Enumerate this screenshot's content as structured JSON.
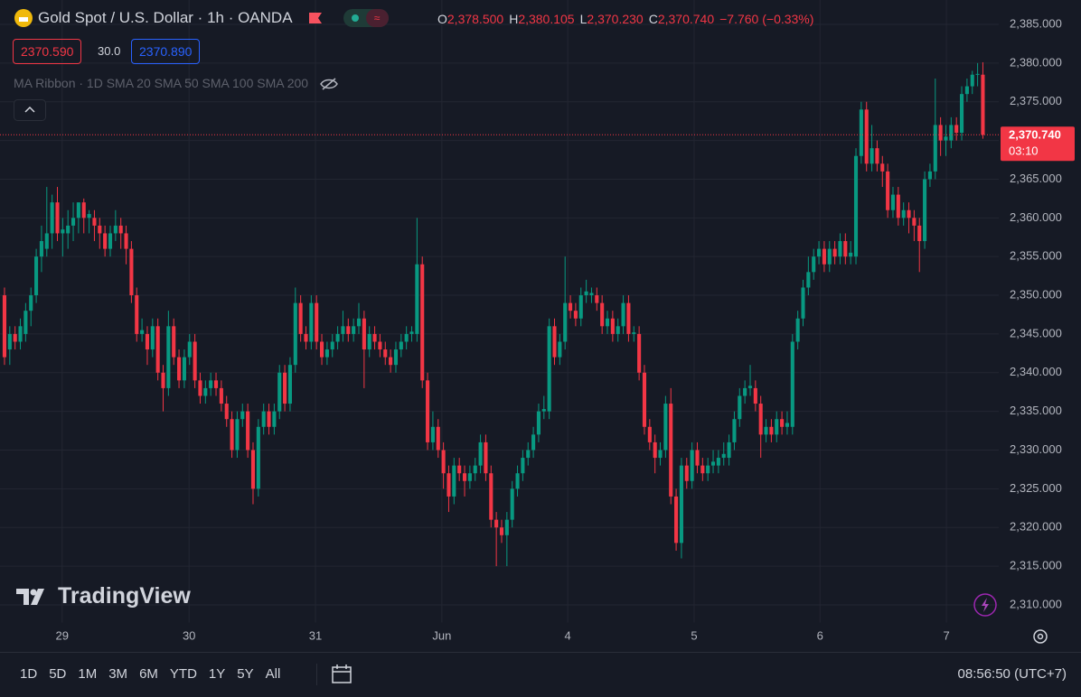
{
  "header": {
    "symbol": "Gold Spot / U.S. Dollar · 1h · OANDA",
    "ohlc": [
      {
        "key": "O",
        "value": "2,378.500"
      },
      {
        "key": "H",
        "value": "2,380.105"
      },
      {
        "key": "L",
        "value": "2,370.230"
      },
      {
        "key": "C",
        "value": "2,370.740"
      }
    ],
    "change": "−7.760 (−0.33%)"
  },
  "quote": {
    "bid": "2370.590",
    "spread": "30.0",
    "ask": "2370.890"
  },
  "indicator": "MA Ribbon · 1D SMA 20 SMA 50 SMA 100 SMA 200",
  "watermark": "TradingView",
  "ranges": [
    "1D",
    "5D",
    "1M",
    "3M",
    "6M",
    "YTD",
    "1Y",
    "5Y",
    "All"
  ],
  "clock": "08:56:50 (UTC+7)",
  "chart_data": {
    "type": "candlestick",
    "up_color": "#089981",
    "down_color": "#f23645",
    "grid": true,
    "last_price": {
      "value": 2370.74,
      "label": "2,370.740"
    },
    "countdown": "03:10",
    "xlim": [
      -0.85,
      188
    ],
    "xticks": [
      {
        "value": 10.9,
        "label": "29"
      },
      {
        "value": 34.9,
        "label": "30"
      },
      {
        "value": 58.8,
        "label": "31"
      },
      {
        "value": 82.7,
        "label": "Jun"
      },
      {
        "value": 106.5,
        "label": "4"
      },
      {
        "value": 130.4,
        "label": "5"
      },
      {
        "value": 154.2,
        "label": "6"
      },
      {
        "value": 178.1,
        "label": "7"
      }
    ],
    "ylim": [
      2307.66,
      2388.15
    ],
    "yticks": [
      {
        "value": 2310,
        "label": "2,310.000"
      },
      {
        "value": 2315,
        "label": "2,315.000"
      },
      {
        "value": 2320,
        "label": "2,320.000"
      },
      {
        "value": 2325,
        "label": "2,325.000"
      },
      {
        "value": 2330,
        "label": "2,330.000"
      },
      {
        "value": 2335,
        "label": "2,335.000"
      },
      {
        "value": 2340,
        "label": "2,340.000"
      },
      {
        "value": 2345,
        "label": "2,345.000"
      },
      {
        "value": 2350,
        "label": "2,350.000"
      },
      {
        "value": 2355,
        "label": "2,355.000"
      },
      {
        "value": 2360,
        "label": "2,360.000"
      },
      {
        "value": 2365,
        "label": "2,365.000"
      },
      {
        "value": 2370,
        "label": "2,370.000"
      },
      {
        "value": 2375,
        "label": "2,375.000"
      },
      {
        "value": 2380,
        "label": "2,380.000"
      },
      {
        "value": 2385,
        "label": "2,385.000"
      }
    ],
    "candles": [
      [
        2350,
        2351,
        2341,
        2342
      ],
      [
        2343,
        2346,
        2341,
        2345
      ],
      [
        2345,
        2346,
        2343,
        2344
      ],
      [
        2344,
        2347,
        2343,
        2346
      ],
      [
        2345,
        2349,
        2344,
        2348
      ],
      [
        2348,
        2351,
        2346,
        2350
      ],
      [
        2350,
        2356,
        2349,
        2355
      ],
      [
        2355,
        2359,
        2353,
        2357
      ],
      [
        2356,
        2364,
        2355,
        2358
      ],
      [
        2358,
        2363,
        2356,
        2362
      ],
      [
        2362,
        2364,
        2357,
        2358
      ],
      [
        2358,
        2360,
        2355,
        2358.5
      ],
      [
        2358,
        2361,
        2356,
        2359
      ],
      [
        2359,
        2362,
        2357,
        2360
      ],
      [
        2360,
        2362,
        2358,
        2362
      ],
      [
        2362,
        2362.5,
        2358,
        2360
      ],
      [
        2360,
        2361,
        2358,
        2360.5
      ],
      [
        2360,
        2361,
        2357,
        2359
      ],
      [
        2359,
        2360,
        2356,
        2358
      ],
      [
        2358,
        2359,
        2355,
        2356
      ],
      [
        2356,
        2359,
        2355,
        2358
      ],
      [
        2358,
        2361,
        2357,
        2359
      ],
      [
        2359,
        2360,
        2356,
        2358
      ],
      [
        2358,
        2359,
        2354,
        2356
      ],
      [
        2356,
        2357,
        2349,
        2350
      ],
      [
        2350,
        2351,
        2344,
        2345
      ],
      [
        2345,
        2347,
        2344,
        2345.5
      ],
      [
        2345,
        2346,
        2341,
        2343
      ],
      [
        2343,
        2347,
        2342,
        2346
      ],
      [
        2346,
        2347,
        2339,
        2340
      ],
      [
        2340,
        2341,
        2335,
        2338
      ],
      [
        2338,
        2348,
        2337,
        2346
      ],
      [
        2346,
        2347,
        2341,
        2342
      ],
      [
        2342,
        2343,
        2338,
        2339
      ],
      [
        2339,
        2343,
        2338,
        2342
      ],
      [
        2342,
        2345,
        2341,
        2344
      ],
      [
        2344,
        2345,
        2338,
        2339
      ],
      [
        2339,
        2340,
        2336,
        2337
      ],
      [
        2337,
        2339,
        2336,
        2338
      ],
      [
        2338,
        2340,
        2337,
        2339
      ],
      [
        2339,
        2340,
        2337,
        2338
      ],
      [
        2338,
        2339,
        2335,
        2336
      ],
      [
        2336,
        2337,
        2333,
        2334
      ],
      [
        2334,
        2335,
        2329,
        2330
      ],
      [
        2330,
        2335,
        2329,
        2334
      ],
      [
        2334,
        2336,
        2333,
        2335
      ],
      [
        2335,
        2336,
        2329,
        2330
      ],
      [
        2330,
        2331,
        2323,
        2325
      ],
      [
        2325,
        2334,
        2324,
        2333
      ],
      [
        2333,
        2336,
        2332,
        2335
      ],
      [
        2335,
        2336,
        2332,
        2333
      ],
      [
        2333,
        2336,
        2332,
        2335
      ],
      [
        2335,
        2341,
        2334,
        2340
      ],
      [
        2340,
        2341,
        2335,
        2336
      ],
      [
        2336,
        2342,
        2335,
        2341
      ],
      [
        2341,
        2351,
        2340,
        2349
      ],
      [
        2349,
        2350,
        2344,
        2345
      ],
      [
        2345,
        2346,
        2343,
        2344
      ],
      [
        2344,
        2350,
        2343,
        2349
      ],
      [
        2349,
        2350,
        2343,
        2344
      ],
      [
        2344,
        2345,
        2341,
        2342
      ],
      [
        2342,
        2344,
        2341,
        2343
      ],
      [
        2343,
        2345,
        2342,
        2344
      ],
      [
        2344,
        2346,
        2343,
        2345
      ],
      [
        2345,
        2348,
        2344,
        2346
      ],
      [
        2346,
        2347,
        2344,
        2345
      ],
      [
        2345,
        2347,
        2344,
        2346
      ],
      [
        2346,
        2349,
        2345,
        2347
      ],
      [
        2347,
        2348,
        2338,
        2343
      ],
      [
        2343,
        2346,
        2342,
        2345
      ],
      [
        2345,
        2346,
        2343,
        2344
      ],
      [
        2344,
        2345,
        2342,
        2343
      ],
      [
        2343,
        2344,
        2341,
        2342
      ],
      [
        2342,
        2343,
        2340,
        2341
      ],
      [
        2341,
        2344,
        2340,
        2343
      ],
      [
        2343,
        2345,
        2342,
        2344
      ],
      [
        2344,
        2346,
        2343,
        2345
      ],
      [
        2345,
        2346,
        2344,
        2345.3
      ],
      [
        2345,
        2360,
        2344,
        2354
      ],
      [
        2354,
        2355,
        2338,
        2339
      ],
      [
        2339,
        2340,
        2330,
        2331
      ],
      [
        2331,
        2335,
        2330,
        2333
      ],
      [
        2333,
        2334,
        2329,
        2330
      ],
      [
        2330,
        2331,
        2325,
        2327
      ],
      [
        2327,
        2328,
        2322,
        2324
      ],
      [
        2324,
        2329,
        2323,
        2328
      ],
      [
        2328,
        2329,
        2326,
        2327
      ],
      [
        2327,
        2328,
        2324,
        2326
      ],
      [
        2326,
        2328,
        2325,
        2327
      ],
      [
        2327,
        2329,
        2326,
        2328
      ],
      [
        2328,
        2332,
        2327,
        2331
      ],
      [
        2331,
        2332,
        2326,
        2327
      ],
      [
        2327,
        2328,
        2320,
        2321
      ],
      [
        2321,
        2322,
        2315,
        2320
      ],
      [
        2320,
        2321,
        2318,
        2319
      ],
      [
        2319,
        2322,
        2315,
        2321
      ],
      [
        2321,
        2326,
        2320,
        2325
      ],
      [
        2325,
        2328,
        2324,
        2327
      ],
      [
        2327,
        2330,
        2326,
        2329
      ],
      [
        2329,
        2331,
        2328,
        2330
      ],
      [
        2330,
        2333,
        2329,
        2332
      ],
      [
        2332,
        2336,
        2331,
        2335
      ],
      [
        2335,
        2337,
        2334,
        2335.3
      ],
      [
        2335,
        2347,
        2334,
        2346
      ],
      [
        2346,
        2347,
        2341,
        2342
      ],
      [
        2342,
        2345,
        2341,
        2344
      ],
      [
        2344,
        2355,
        2343,
        2349
      ],
      [
        2349,
        2350,
        2347,
        2348
      ],
      [
        2348,
        2349,
        2346,
        2347
      ],
      [
        2347,
        2351,
        2346,
        2350
      ],
      [
        2350,
        2352,
        2349,
        2350.5
      ],
      [
        2350,
        2351,
        2349,
        2350.3
      ],
      [
        2350,
        2351,
        2348,
        2349
      ],
      [
        2349,
        2350,
        2345,
        2346
      ],
      [
        2346,
        2348,
        2345,
        2347
      ],
      [
        2347,
        2348,
        2344,
        2345
      ],
      [
        2345,
        2347,
        2344,
        2346
      ],
      [
        2346,
        2350,
        2345,
        2349
      ],
      [
        2349,
        2350,
        2344,
        2345
      ],
      [
        2345,
        2346,
        2344,
        2345.2
      ],
      [
        2345,
        2346,
        2339,
        2340
      ],
      [
        2340,
        2341,
        2332,
        2333
      ],
      [
        2333,
        2334,
        2330,
        2331
      ],
      [
        2331,
        2332,
        2327,
        2329
      ],
      [
        2329,
        2331,
        2328,
        2330
      ],
      [
        2330,
        2337,
        2329,
        2336
      ],
      [
        2336,
        2338,
        2323,
        2324
      ],
      [
        2324,
        2325,
        2317,
        2318
      ],
      [
        2318,
        2329,
        2316,
        2328
      ],
      [
        2328,
        2329,
        2325,
        2326
      ],
      [
        2326,
        2331,
        2325,
        2330
      ],
      [
        2330,
        2331,
        2327,
        2328
      ],
      [
        2328,
        2329,
        2326,
        2327
      ],
      [
        2327,
        2329,
        2326,
        2328
      ],
      [
        2328,
        2330,
        2327,
        2328.5
      ],
      [
        2328,
        2330,
        2327,
        2329
      ],
      [
        2329,
        2331,
        2328,
        2329.5
      ],
      [
        2329,
        2332,
        2328,
        2331
      ],
      [
        2331,
        2335,
        2330,
        2334
      ],
      [
        2334,
        2338,
        2333,
        2337
      ],
      [
        2337,
        2339,
        2336,
        2338
      ],
      [
        2338,
        2341,
        2337,
        2338.3
      ],
      [
        2338,
        2339,
        2335,
        2336
      ],
      [
        2336,
        2337,
        2329,
        2332
      ],
      [
        2332,
        2334,
        2331,
        2333
      ],
      [
        2333,
        2334,
        2331,
        2332
      ],
      [
        2332,
        2335,
        2331,
        2334
      ],
      [
        2334,
        2335,
        2332,
        2333
      ],
      [
        2333,
        2335,
        2332,
        2333.5
      ],
      [
        2333,
        2345,
        2332,
        2344
      ],
      [
        2344,
        2348,
        2343,
        2347
      ],
      [
        2347,
        2352,
        2346,
        2351
      ],
      [
        2351,
        2355,
        2350,
        2353
      ],
      [
        2353,
        2356,
        2352,
        2355
      ],
      [
        2355,
        2357,
        2354,
        2356
      ],
      [
        2356,
        2357,
        2353,
        2354
      ],
      [
        2354,
        2357,
        2353,
        2356
      ],
      [
        2356,
        2357,
        2354,
        2355
      ],
      [
        2355,
        2358,
        2354,
        2357
      ],
      [
        2357,
        2358,
        2354,
        2355
      ],
      [
        2355,
        2357,
        2354,
        2355.5
      ],
      [
        2355,
        2369,
        2354,
        2368
      ],
      [
        2368,
        2375,
        2367,
        2374
      ],
      [
        2374,
        2375,
        2366,
        2367
      ],
      [
        2367,
        2372,
        2366,
        2369
      ],
      [
        2369,
        2370,
        2366,
        2367
      ],
      [
        2367,
        2368,
        2364,
        2366
      ],
      [
        2366,
        2367,
        2360,
        2361
      ],
      [
        2361,
        2364,
        2360,
        2363
      ],
      [
        2363,
        2364,
        2359,
        2360
      ],
      [
        2360,
        2362,
        2359,
        2361
      ],
      [
        2361,
        2362,
        2358,
        2360
      ],
      [
        2360,
        2361,
        2357,
        2359
      ],
      [
        2359,
        2360,
        2353,
        2357
      ],
      [
        2357,
        2366,
        2356,
        2365
      ],
      [
        2365,
        2367,
        2364,
        2366
      ],
      [
        2366,
        2378,
        2365,
        2372
      ],
      [
        2372,
        2373,
        2368,
        2370
      ],
      [
        2370,
        2372,
        2368,
        2370.5
      ],
      [
        2370,
        2373,
        2369,
        2372
      ],
      [
        2372,
        2373,
        2370,
        2371
      ],
      [
        2371,
        2377,
        2370,
        2376
      ],
      [
        2376,
        2378,
        2375,
        2377
      ],
      [
        2377,
        2379,
        2376,
        2378.5
      ],
      [
        2378.5,
        2380,
        2377,
        2378.6
      ],
      [
        2378.5,
        2380.105,
        2370.23,
        2370.74
      ]
    ]
  }
}
